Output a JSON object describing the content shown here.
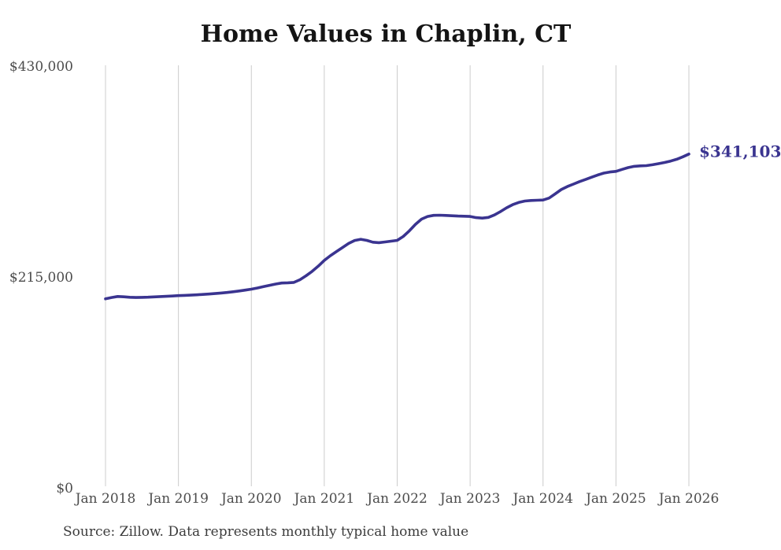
{
  "title": "Home Values in Chaplin, CT",
  "source_note": "Source: Zillow. Data represents monthly typical home value",
  "colors": {
    "line": "#3a3490",
    "latest_value_label": "#3a3490",
    "grid": "#cccccc",
    "axis_text": "#4c4c4c",
    "title_text": "#141414",
    "source_text": "#3c3c3c",
    "background": "#ffffff"
  },
  "chart_data": {
    "type": "line",
    "title": "Home Values in Chaplin, CT",
    "xlabel": "",
    "ylabel": "",
    "frequency": "monthly",
    "x_start": "Jan 2018",
    "x_end": "Jan 2026",
    "x_tick_labels": [
      "Jan 2018",
      "Jan 2019",
      "Jan 2020",
      "Jan 2021",
      "Jan 2022",
      "Jan 2023",
      "Jan 2024",
      "Jan 2025",
      "Jan 2026"
    ],
    "x_tick_indices": [
      0,
      12,
      24,
      36,
      48,
      60,
      72,
      84,
      96
    ],
    "y_tick_labels": [
      "$0",
      "$215,000",
      "$430,000"
    ],
    "y_tick_values": [
      0,
      215000,
      430000
    ],
    "ylim": [
      0,
      430000
    ],
    "grid": "vertical-only",
    "legend": "none",
    "series_name": "Typical home value",
    "last_value": 341103,
    "last_value_label": "$341,103",
    "values": [
      193500,
      194900,
      195900,
      195600,
      195100,
      194900,
      195000,
      195200,
      195500,
      195800,
      196100,
      196400,
      196800,
      197000,
      197300,
      197600,
      198000,
      198400,
      198900,
      199400,
      200000,
      200700,
      201500,
      202400,
      203400,
      204600,
      205900,
      207300,
      208600,
      209600,
      209900,
      210300,
      213000,
      217000,
      221500,
      226800,
      232700,
      237500,
      241600,
      245800,
      250000,
      253000,
      254200,
      253100,
      251300,
      250800,
      251500,
      252300,
      253100,
      257100,
      262800,
      269500,
      274800,
      277500,
      278600,
      278800,
      278500,
      278200,
      277900,
      277700,
      277500,
      276300,
      275800,
      276500,
      279000,
      282500,
      286300,
      289500,
      291800,
      293200,
      293800,
      294000,
      294300,
      296300,
      300500,
      304900,
      308000,
      310500,
      313000,
      315200,
      317500,
      319800,
      321700,
      322800,
      323500,
      325500,
      327300,
      328600,
      329100,
      329300,
      330200,
      331300,
      332500,
      334000,
      335800,
      338300,
      341103
    ]
  }
}
